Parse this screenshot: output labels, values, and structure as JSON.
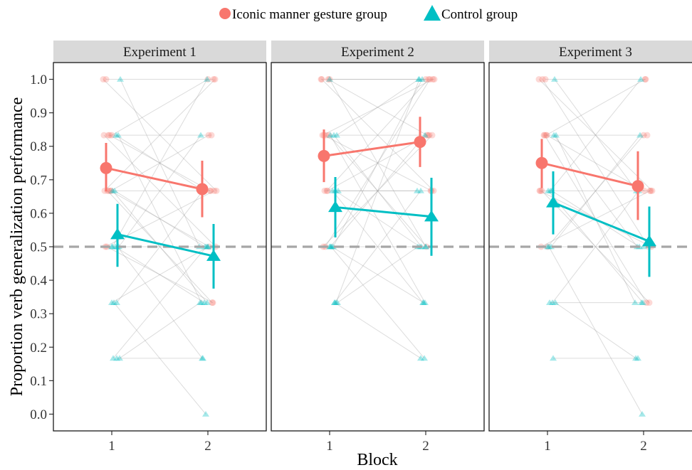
{
  "chart_data": {
    "type": "line",
    "title": "",
    "xlabel": "Block",
    "ylabel": "Proportion verb generalization performance",
    "x_categories": [
      "1",
      "2"
    ],
    "y_ticks": [
      "0.0",
      "0.1",
      "0.2",
      "0.3",
      "0.4",
      "0.5",
      "0.6",
      "0.7",
      "0.8",
      "0.9",
      "1.0"
    ],
    "ylim": [
      -0.05,
      1.05
    ],
    "reference_line": 0.5,
    "grid": false,
    "legend_position": "top",
    "legend": [
      {
        "name": "Iconic manner gesture group",
        "color": "#F8766D",
        "shape": "circle"
      },
      {
        "name": "Control group",
        "color": "#00BFC4",
        "shape": "triangle"
      }
    ],
    "panels": [
      {
        "label": "Experiment 1",
        "series": [
          {
            "name": "Iconic manner gesture group",
            "values": [
              0.735,
              0.672
            ],
            "ci_low": [
              0.665,
              0.588
            ],
            "ci_high": [
              0.81,
              0.757
            ]
          },
          {
            "name": "Control group",
            "values": [
              0.537,
              0.472
            ],
            "ci_low": [
              0.44,
              0.375
            ],
            "ci_high": [
              0.628,
              0.568
            ]
          }
        ],
        "participants": {
          "Iconic manner gesture group": [
            [
              1.0,
              0.667
            ],
            [
              0.833,
              0.833
            ],
            [
              0.833,
              0.5
            ],
            [
              0.667,
              0.667
            ],
            [
              0.667,
              1.0
            ],
            [
              0.833,
              0.667
            ],
            [
              0.5,
              0.667
            ],
            [
              0.667,
              0.5
            ],
            [
              1.0,
              1.0
            ],
            [
              0.667,
              0.833
            ],
            [
              0.5,
              0.333
            ],
            [
              0.833,
              1.0
            ],
            [
              0.667,
              0.333
            ]
          ],
          "Control group": [
            [
              0.5,
              0.5
            ],
            [
              0.333,
              0.667
            ],
            [
              0.667,
              0.333
            ],
            [
              0.5,
              0.167
            ],
            [
              0.167,
              0.5
            ],
            [
              0.833,
              0.333
            ],
            [
              0.333,
              0.0
            ],
            [
              0.5,
              0.833
            ],
            [
              0.667,
              0.5
            ],
            [
              0.167,
              0.333
            ],
            [
              0.5,
              0.333
            ],
            [
              1.0,
              0.5
            ],
            [
              0.833,
              0.667
            ],
            [
              0.333,
              0.5
            ],
            [
              0.167,
              0.167
            ],
            [
              0.5,
              1.0
            ]
          ]
        }
      },
      {
        "label": "Experiment 2",
        "series": [
          {
            "name": "Iconic manner gesture group",
            "values": [
              0.771,
              0.813
            ],
            "ci_low": [
              0.693,
              0.738
            ],
            "ci_high": [
              0.85,
              0.888
            ]
          },
          {
            "name": "Control group",
            "values": [
              0.618,
              0.59
            ],
            "ci_low": [
              0.528,
              0.473
            ],
            "ci_high": [
              0.708,
              0.706
            ]
          }
        ],
        "participants": {
          "Iconic manner gesture group": [
            [
              1.0,
              1.0
            ],
            [
              0.833,
              0.833
            ],
            [
              1.0,
              0.667
            ],
            [
              0.667,
              1.0
            ],
            [
              0.833,
              1.0
            ],
            [
              0.667,
              0.833
            ],
            [
              0.5,
              0.833
            ],
            [
              1.0,
              0.833
            ],
            [
              0.833,
              0.667
            ],
            [
              0.833,
              0.5
            ],
            [
              0.667,
              0.667
            ],
            [
              1.0,
              1.0
            ],
            [
              0.5,
              1.0
            ]
          ],
          "Control group": [
            [
              0.5,
              0.5
            ],
            [
              0.333,
              0.667
            ],
            [
              0.833,
              0.333
            ],
            [
              0.667,
              0.5
            ],
            [
              0.5,
              0.167
            ],
            [
              0.333,
              1.0
            ],
            [
              0.5,
              0.333
            ],
            [
              0.833,
              1.0
            ],
            [
              0.667,
              0.333
            ],
            [
              0.333,
              0.5
            ],
            [
              0.5,
              1.0
            ],
            [
              0.667,
              0.667
            ],
            [
              0.833,
              0.5
            ],
            [
              1.0,
              0.5
            ],
            [
              0.333,
              0.167
            ],
            [
              0.5,
              0.833
            ]
          ]
        }
      },
      {
        "label": "Experiment 3",
        "series": [
          {
            "name": "Iconic manner gesture group",
            "values": [
              0.75,
              0.681
            ],
            "ci_low": [
              0.675,
              0.58
            ],
            "ci_high": [
              0.822,
              0.785
            ]
          },
          {
            "name": "Control group",
            "values": [
              0.632,
              0.516
            ],
            "ci_low": [
              0.537,
              0.41
            ],
            "ci_high": [
              0.725,
              0.62
            ]
          }
        ],
        "participants": {
          "Iconic manner gesture group": [
            [
              1.0,
              0.667
            ],
            [
              0.833,
              0.833
            ],
            [
              0.667,
              0.5
            ],
            [
              0.833,
              0.333
            ],
            [
              0.667,
              0.667
            ],
            [
              1.0,
              1.0
            ],
            [
              0.5,
              0.667
            ],
            [
              0.833,
              1.0
            ],
            [
              0.667,
              0.333
            ],
            [
              0.833,
              0.667
            ],
            [
              1.0,
              0.5
            ],
            [
              0.5,
              0.833
            ]
          ],
          "Control group": [
            [
              0.5,
              0.5
            ],
            [
              0.333,
              0.667
            ],
            [
              0.667,
              0.333
            ],
            [
              0.167,
              0.167
            ],
            [
              0.5,
              0.0
            ],
            [
              0.833,
              0.5
            ],
            [
              0.333,
              0.333
            ],
            [
              1.0,
              0.667
            ],
            [
              0.667,
              1.0
            ],
            [
              0.333,
              0.167
            ],
            [
              0.5,
              0.833
            ],
            [
              0.833,
              0.333
            ],
            [
              0.667,
              0.5
            ]
          ]
        }
      }
    ]
  }
}
